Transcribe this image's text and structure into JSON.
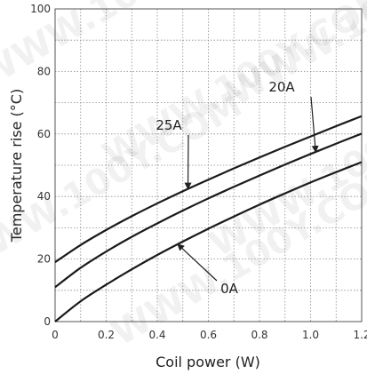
{
  "chart_data": {
    "type": "line",
    "xlabel": "Coil power (W)",
    "ylabel": "Temperature rise (°C)",
    "xlim": [
      0,
      1.2
    ],
    "ylim": [
      0,
      100
    ],
    "xticks": [
      "0",
      "0.2",
      "0.4",
      "0.6",
      "0.8",
      "1.0",
      "1.2"
    ],
    "yticks": [
      "0",
      "20",
      "40",
      "60",
      "80",
      "100"
    ],
    "grid": true,
    "series": [
      {
        "name": "0A",
        "x": [
          0,
          0.1,
          0.2,
          0.3,
          0.4,
          0.5,
          0.6,
          0.7,
          0.8,
          0.9,
          1.0,
          1.1,
          1.2
        ],
        "values": [
          0,
          6.5,
          11.8,
          16.7,
          21.3,
          25.6,
          29.7,
          33.6,
          37.4,
          41.0,
          44.5,
          47.8,
          51.0
        ]
      },
      {
        "name": "20A",
        "x": [
          0,
          0.1,
          0.2,
          0.3,
          0.4,
          0.5,
          0.6,
          0.7,
          0.8,
          0.9,
          1.0,
          1.1,
          1.2
        ],
        "values": [
          11,
          17.2,
          22.4,
          27.1,
          31.4,
          35.5,
          39.4,
          43.1,
          46.7,
          50.2,
          53.6,
          56.9,
          60.1
        ]
      },
      {
        "name": "25A",
        "x": [
          0,
          0.1,
          0.2,
          0.3,
          0.4,
          0.5,
          0.6,
          0.7,
          0.8,
          0.9,
          1.0,
          1.1,
          1.2
        ],
        "values": [
          19,
          24.5,
          29.3,
          33.7,
          37.8,
          41.7,
          45.4,
          49.0,
          52.5,
          55.9,
          59.2,
          62.5,
          65.7
        ]
      }
    ],
    "annotations": [
      "25A",
      "20A",
      "0A"
    ]
  },
  "watermark": "WWW.100Y.COM"
}
